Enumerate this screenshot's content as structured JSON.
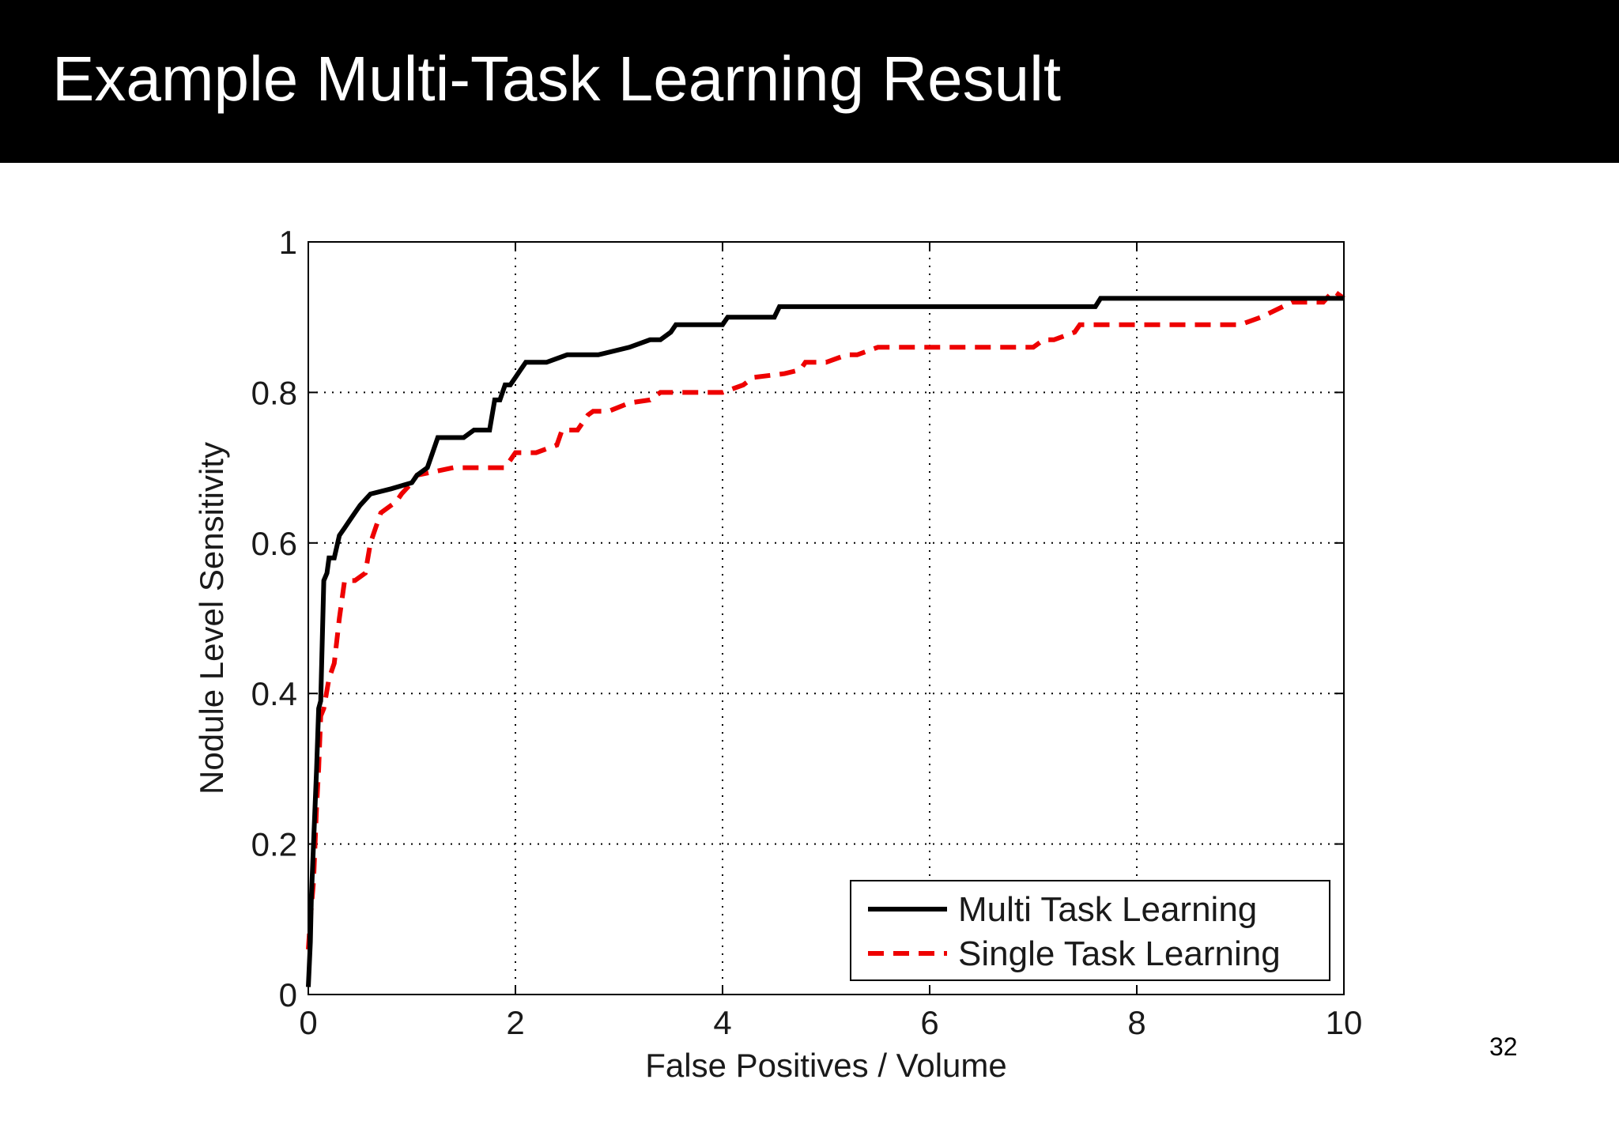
{
  "slide": {
    "title": "Example Multi-Task Learning Result",
    "page_number": "32"
  },
  "colors": {
    "multi_task": "#000000",
    "single_task": "#ee0000",
    "title_background": "#000000",
    "title_text": "#ffffff"
  },
  "chart_data": {
    "type": "line",
    "title": "",
    "xlabel": "False Positives / Volume",
    "ylabel": "Nodule Level Sensitivity",
    "xlim": [
      0,
      10
    ],
    "ylim": [
      0,
      1
    ],
    "xticks": [
      0,
      2,
      4,
      6,
      8,
      10
    ],
    "xtick_labels": [
      "0",
      "2",
      "4",
      "6",
      "8",
      "10"
    ],
    "yticks": [
      0,
      0.2,
      0.4,
      0.6,
      0.8,
      1
    ],
    "ytick_labels": [
      "0",
      "0.2",
      "0.4",
      "0.6",
      "0.8",
      "1"
    ],
    "grid": true,
    "legend_position": "bottom-right",
    "series": [
      {
        "name": "Multi Task Learning",
        "style": "solid",
        "color": "#000000",
        "x": [
          0,
          0.02,
          0.03,
          0.05,
          0.08,
          0.1,
          0.12,
          0.15,
          0.18,
          0.2,
          0.22,
          0.25,
          0.3,
          0.35,
          0.4,
          0.45,
          0.5,
          0.6,
          0.8,
          1.0,
          1.05,
          1.15,
          1.2,
          1.25,
          1.3,
          1.5,
          1.6,
          1.75,
          1.8,
          1.85,
          1.9,
          1.95,
          2.0,
          2.05,
          2.1,
          2.3,
          2.5,
          2.8,
          3.1,
          3.3,
          3.4,
          3.5,
          3.55,
          3.7,
          4.0,
          4.05,
          4.5,
          4.55,
          6.0,
          7.6,
          7.65,
          8.5,
          9.5,
          10.0
        ],
        "y": [
          0.01,
          0.07,
          0.13,
          0.2,
          0.3,
          0.38,
          0.39,
          0.55,
          0.56,
          0.58,
          0.58,
          0.58,
          0.61,
          0.62,
          0.63,
          0.64,
          0.65,
          0.665,
          0.672,
          0.68,
          0.69,
          0.7,
          0.72,
          0.74,
          0.74,
          0.74,
          0.75,
          0.75,
          0.79,
          0.79,
          0.81,
          0.81,
          0.82,
          0.83,
          0.84,
          0.84,
          0.85,
          0.85,
          0.86,
          0.87,
          0.87,
          0.88,
          0.89,
          0.89,
          0.89,
          0.9,
          0.9,
          0.914,
          0.914,
          0.914,
          0.925,
          0.925,
          0.925,
          0.925
        ]
      },
      {
        "name": "Single Task Learning",
        "style": "dashed",
        "color": "#ee0000",
        "x": [
          0,
          0.02,
          0.05,
          0.08,
          0.1,
          0.12,
          0.15,
          0.2,
          0.25,
          0.3,
          0.35,
          0.45,
          0.55,
          0.6,
          0.65,
          0.7,
          0.85,
          0.9,
          1.0,
          1.05,
          1.4,
          1.9,
          2.0,
          2.2,
          2.4,
          2.45,
          2.6,
          2.7,
          2.75,
          2.9,
          3.1,
          3.3,
          3.4,
          3.5,
          4.0,
          4.2,
          4.3,
          4.6,
          4.75,
          4.8,
          5.0,
          5.2,
          5.3,
          5.5,
          5.75,
          7.0,
          7.1,
          7.2,
          7.4,
          7.45,
          8.0,
          9.0,
          9.2,
          9.5,
          9.8,
          9.9,
          10.0
        ],
        "y": [
          0.06,
          0.1,
          0.15,
          0.25,
          0.3,
          0.37,
          0.38,
          0.42,
          0.44,
          0.5,
          0.55,
          0.55,
          0.56,
          0.6,
          0.62,
          0.64,
          0.655,
          0.665,
          0.68,
          0.69,
          0.7,
          0.7,
          0.72,
          0.72,
          0.73,
          0.75,
          0.75,
          0.77,
          0.775,
          0.775,
          0.786,
          0.79,
          0.8,
          0.8,
          0.8,
          0.81,
          0.82,
          0.825,
          0.83,
          0.84,
          0.84,
          0.85,
          0.85,
          0.86,
          0.86,
          0.86,
          0.87,
          0.87,
          0.88,
          0.89,
          0.89,
          0.89,
          0.9,
          0.92,
          0.92,
          0.935,
          0.925
        ]
      }
    ]
  }
}
